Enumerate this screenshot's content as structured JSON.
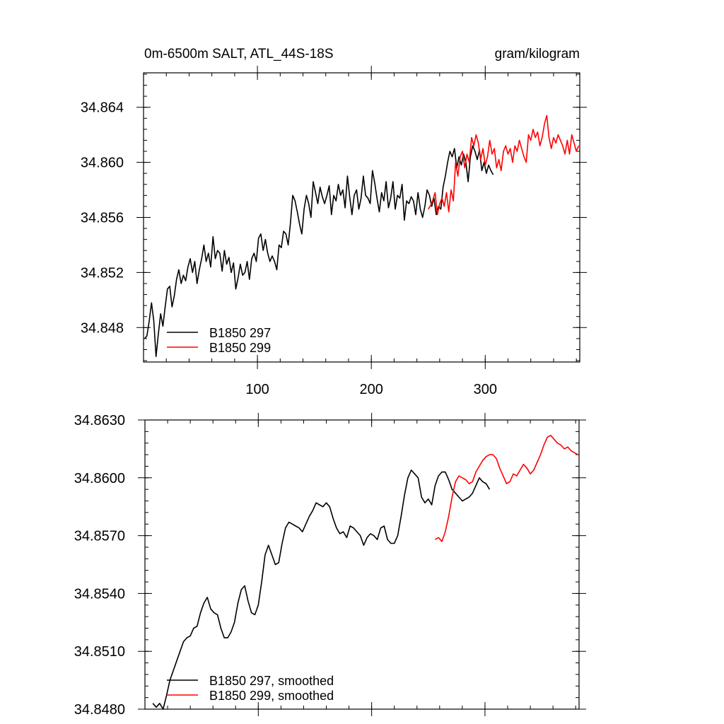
{
  "chart_data": [
    {
      "type": "line",
      "title": "0m-6500m SALT, ATL_44S-18S",
      "units": "gram/kilogram",
      "xlim": [
        0,
        383
      ],
      "ylim": [
        34.8455,
        34.8665
      ],
      "x_ticks": [
        100,
        200,
        300
      ],
      "x_tick_labels": [
        "100",
        "200",
        "300"
      ],
      "y_ticks": [
        34.848,
        34.852,
        34.856,
        34.86,
        34.864
      ],
      "y_tick_labels": [
        "34.848",
        "34.852",
        "34.856",
        "34.860",
        "34.864"
      ],
      "legend_position": "bottom-left",
      "series": [
        {
          "name": "B1850 297",
          "color": "#000000",
          "x": [
            1,
            3,
            5,
            7,
            9,
            11,
            13,
            15,
            17,
            19,
            21,
            23,
            25,
            27,
            29,
            31,
            33,
            35,
            37,
            39,
            41,
            43,
            45,
            47,
            49,
            51,
            53,
            55,
            57,
            59,
            61,
            63,
            65,
            67,
            69,
            71,
            73,
            75,
            77,
            79,
            81,
            83,
            85,
            87,
            89,
            91,
            93,
            95,
            97,
            99,
            101,
            103,
            105,
            107,
            109,
            111,
            113,
            115,
            117,
            119,
            121,
            123,
            125,
            127,
            129,
            131,
            133,
            135,
            137,
            139,
            141,
            143,
            145,
            147,
            149,
            151,
            153,
            155,
            157,
            159,
            161,
            163,
            165,
            167,
            169,
            171,
            173,
            175,
            177,
            179,
            181,
            183,
            185,
            187,
            189,
            191,
            193,
            195,
            197,
            199,
            201,
            203,
            205,
            207,
            209,
            211,
            213,
            215,
            217,
            219,
            221,
            223,
            225,
            227,
            229,
            231,
            233,
            235,
            237,
            239,
            241,
            243,
            245,
            247,
            249,
            251,
            253,
            255,
            257,
            259,
            261,
            263,
            265,
            267,
            269,
            271,
            273,
            275,
            277,
            279,
            281,
            283,
            285,
            287,
            289,
            291,
            293,
            295,
            297,
            299,
            301,
            303,
            305,
            307
          ],
          "values": [
            34.8472,
            34.8474,
            34.8485,
            34.8498,
            34.8485,
            34.8459,
            34.8475,
            34.849,
            34.8481,
            34.8495,
            34.8508,
            34.851,
            34.8495,
            34.8503,
            34.8515,
            34.8522,
            34.8512,
            34.8518,
            34.8514,
            34.8524,
            34.853,
            34.852,
            34.8528,
            34.8512,
            34.8522,
            34.853,
            34.854,
            34.8528,
            34.8534,
            34.8524,
            34.8546,
            34.853,
            34.8536,
            34.8534,
            34.8521,
            34.8536,
            34.8526,
            34.8531,
            34.852,
            34.8527,
            34.8508,
            34.8516,
            34.8526,
            34.8518,
            34.852,
            34.8528,
            34.8515,
            34.853,
            34.8534,
            34.8528,
            34.8545,
            34.8548,
            34.8536,
            34.8544,
            34.8534,
            34.8528,
            34.8532,
            34.8528,
            34.8522,
            34.854,
            34.8538,
            34.855,
            34.8548,
            34.854,
            34.8556,
            34.8576,
            34.8572,
            34.8564,
            34.8555,
            34.8548,
            34.8566,
            34.8576,
            34.857,
            34.856,
            34.8586,
            34.8578,
            34.857,
            34.8582,
            34.8575,
            34.857,
            34.8576,
            34.8583,
            34.8562,
            34.8576,
            34.8572,
            34.8584,
            34.8576,
            34.858,
            34.8567,
            34.859,
            34.8575,
            34.8562,
            34.8576,
            34.858,
            34.8566,
            34.8574,
            34.859,
            34.8576,
            34.8574,
            34.857,
            34.8594,
            34.8585,
            34.8574,
            34.8564,
            34.8578,
            34.8572,
            34.8586,
            34.8567,
            34.8574,
            34.8586,
            34.8566,
            34.8576,
            34.8574,
            34.8584,
            34.8558,
            34.8572,
            34.857,
            34.8575,
            34.8572,
            34.8562,
            34.8578,
            34.8566,
            34.856,
            34.8568,
            34.858,
            34.8576,
            34.8568,
            34.8574,
            34.8562,
            34.8568,
            34.8566,
            34.8582,
            34.859,
            34.86,
            34.8608,
            34.8604,
            34.861,
            34.8596,
            34.8604,
            34.8598,
            34.8606,
            34.86,
            34.8586,
            34.8604,
            34.8612,
            34.8608,
            34.8602,
            34.8609,
            34.8594,
            34.86,
            34.8592,
            34.8598,
            34.8594,
            34.8591
          ]
        },
        {
          "name": "B1850 299",
          "color": "#ff0000",
          "x": [
            250,
            253,
            256,
            258,
            260,
            262,
            264,
            266,
            268,
            270,
            272,
            274,
            276,
            278,
            280,
            282,
            284,
            286,
            288,
            290,
            292,
            294,
            296,
            298,
            300,
            302,
            304,
            306,
            308,
            310,
            312,
            314,
            316,
            318,
            320,
            322,
            324,
            326,
            328,
            330,
            332,
            334,
            336,
            338,
            340,
            342,
            344,
            346,
            348,
            350,
            352,
            354,
            356,
            358,
            360,
            362,
            364,
            366,
            368,
            370,
            372,
            374,
            376,
            378,
            380,
            382
          ],
          "values": [
            34.8566,
            34.857,
            34.8578,
            34.8562,
            34.857,
            34.8574,
            34.8568,
            34.8578,
            34.8564,
            34.858,
            34.8572,
            34.86,
            34.859,
            34.8604,
            34.8608,
            34.8596,
            34.8606,
            34.86,
            34.8618,
            34.8612,
            34.862,
            34.8614,
            34.8602,
            34.861,
            34.8598,
            34.8604,
            34.8616,
            34.8606,
            34.861,
            34.8596,
            34.8602,
            34.8594,
            34.8608,
            34.8612,
            34.8606,
            34.861,
            34.86,
            34.8612,
            34.8608,
            34.8616,
            34.861,
            34.8604,
            34.86,
            34.862,
            34.8616,
            34.8624,
            34.8618,
            34.8622,
            34.8612,
            34.8618,
            34.8628,
            34.8634,
            34.8618,
            34.861,
            34.8618,
            34.8614,
            34.862,
            34.8616,
            34.8612,
            34.8606,
            34.8616,
            34.8606,
            34.862,
            34.8614,
            34.8608,
            34.8612
          ]
        }
      ]
    },
    {
      "type": "line",
      "xlim": [
        0,
        383
      ],
      "ylim": [
        34.848,
        34.863
      ],
      "x_ticks": [
        100,
        200,
        300
      ],
      "y_ticks": [
        34.848,
        34.851,
        34.854,
        34.857,
        34.86,
        34.863
      ],
      "y_tick_labels": [
        "34.8480",
        "34.8510",
        "34.8540",
        "34.8570",
        "34.8600",
        "34.8630"
      ],
      "legend_position": "bottom-left",
      "series": [
        {
          "name": "B1850 297, smoothed",
          "color": "#000000",
          "x": [
            7,
            10,
            13,
            16,
            19,
            22,
            25,
            28,
            31,
            34,
            37,
            40,
            43,
            46,
            49,
            52,
            55,
            58,
            61,
            64,
            67,
            70,
            73,
            76,
            79,
            82,
            85,
            88,
            91,
            94,
            97,
            100,
            103,
            106,
            109,
            112,
            115,
            118,
            121,
            124,
            127,
            130,
            133,
            136,
            139,
            142,
            145,
            148,
            151,
            154,
            157,
            160,
            163,
            166,
            169,
            172,
            175,
            178,
            181,
            184,
            187,
            190,
            193,
            196,
            199,
            202,
            205,
            208,
            211,
            214,
            217,
            220,
            223,
            226,
            229,
            232,
            235,
            238,
            241,
            244,
            247,
            250,
            253,
            256,
            259,
            262,
            265,
            268,
            271,
            274,
            277,
            280,
            283,
            286,
            289,
            292,
            295,
            298,
            301,
            304
          ],
          "values": [
            34.8483,
            34.8481,
            34.8483,
            34.848,
            34.8487,
            34.8495,
            34.85,
            34.8505,
            34.851,
            34.8515,
            34.8517,
            34.8518,
            34.8522,
            34.8523,
            34.853,
            34.8535,
            34.8538,
            34.8532,
            34.853,
            34.8529,
            34.8522,
            34.8517,
            34.8517,
            34.852,
            34.8525,
            34.8535,
            34.8542,
            34.8544,
            34.8536,
            34.853,
            34.8529,
            34.8534,
            34.8546,
            34.856,
            34.8565,
            34.856,
            34.8555,
            34.8556,
            34.8566,
            34.8574,
            34.8577,
            34.8576,
            34.8575,
            34.8574,
            34.8572,
            34.8576,
            34.858,
            34.8583,
            34.8587,
            34.8586,
            34.8585,
            34.8587,
            34.8585,
            34.8579,
            34.8574,
            34.8571,
            34.8572,
            34.8569,
            34.8575,
            34.8574,
            34.8572,
            34.857,
            34.8565,
            34.8569,
            34.8571,
            34.857,
            34.8568,
            34.8574,
            34.8575,
            34.8568,
            34.8566,
            34.8566,
            34.857,
            34.858,
            34.8591,
            34.86,
            34.8604,
            34.8602,
            34.86,
            34.859,
            34.8587,
            34.8589,
            34.8586,
            34.8596,
            34.8601,
            34.8603,
            34.8603,
            34.8599,
            34.8594,
            34.8592,
            34.859,
            34.8588,
            34.8589,
            34.859,
            34.8592,
            34.8596,
            34.86,
            34.8598,
            34.8597,
            34.8594
          ]
        },
        {
          "name": "B1850 299, smoothed",
          "color": "#ff0000",
          "x": [
            256,
            259,
            262,
            265,
            268,
            271,
            274,
            277,
            280,
            283,
            286,
            289,
            292,
            295,
            298,
            301,
            304,
            307,
            310,
            313,
            316,
            319,
            322,
            325,
            328,
            331,
            334,
            337,
            340,
            343,
            346,
            349,
            352,
            355,
            358,
            361,
            364,
            367,
            370,
            373,
            376,
            379,
            382
          ],
          "values": [
            34.8568,
            34.8569,
            34.8567,
            34.8572,
            34.858,
            34.859,
            34.8598,
            34.8601,
            34.86,
            34.8599,
            34.8597,
            34.8598,
            34.8603,
            34.8606,
            34.8609,
            34.8611,
            34.8612,
            34.8612,
            34.861,
            34.8605,
            34.8601,
            34.8597,
            34.8598,
            34.8602,
            34.8601,
            34.8604,
            34.8607,
            34.8605,
            34.8602,
            34.8604,
            34.8608,
            34.8612,
            34.8617,
            34.8621,
            34.8622,
            34.862,
            34.8618,
            34.8617,
            34.8615,
            34.8616,
            34.8614,
            34.8613,
            34.8612
          ]
        }
      ]
    }
  ]
}
